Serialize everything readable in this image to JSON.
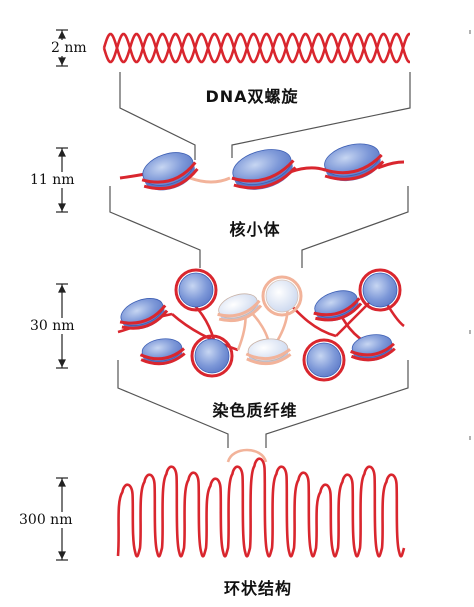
{
  "header_fragment": "",
  "stages": [
    {
      "label": "DNA双螺旋",
      "scale": "2 nm"
    },
    {
      "label": "核小体",
      "scale": "11 nm"
    },
    {
      "label": "染色质纤维",
      "scale": "30 nm"
    },
    {
      "label": "环状结构",
      "scale": "300 nm"
    }
  ],
  "colors": {
    "dna_red": "#d9262e",
    "dna_pale": "#f2b39a",
    "histone_blue": "#6f8fd6",
    "histone_pale": "#dce6f6",
    "lines": "#555555"
  }
}
